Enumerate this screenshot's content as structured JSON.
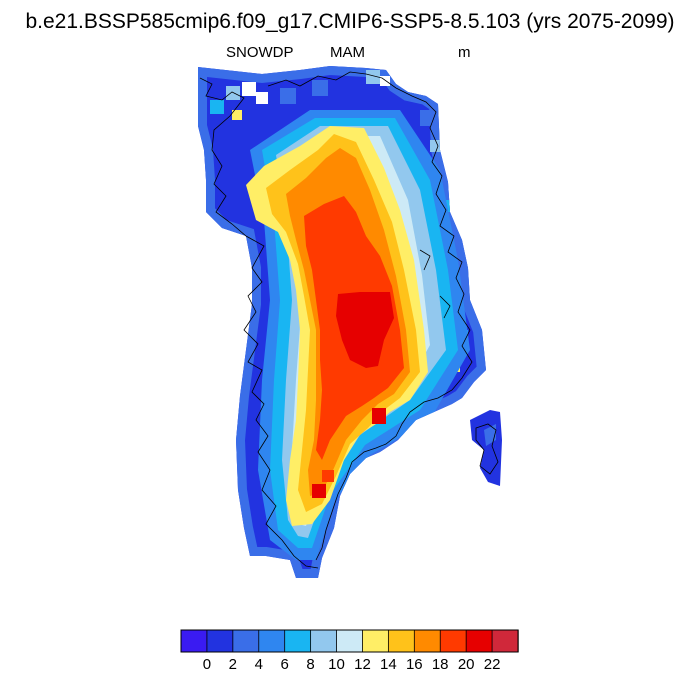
{
  "title": "b.e21.BSSP585cmip6.f09_g17.CMIP6-SSP5-8.5.103 (yrs 2075-2099)",
  "subtitle": {
    "variable": "SNOWDP",
    "season": "MAM",
    "units": "m"
  },
  "colorbar": {
    "colors": [
      "#3a1bf2",
      "#2233e0",
      "#3a6ee8",
      "#2f86f0",
      "#19b5f2",
      "#92c8ee",
      "#cdeaf6",
      "#ffee66",
      "#ffc21a",
      "#ff8a00",
      "#ff3a00",
      "#e60000",
      "#d0283a"
    ],
    "tick_labels": [
      "0",
      "2",
      "4",
      "6",
      "8",
      "10",
      "12",
      "14",
      "16",
      "18",
      "20",
      "22"
    ]
  }
}
